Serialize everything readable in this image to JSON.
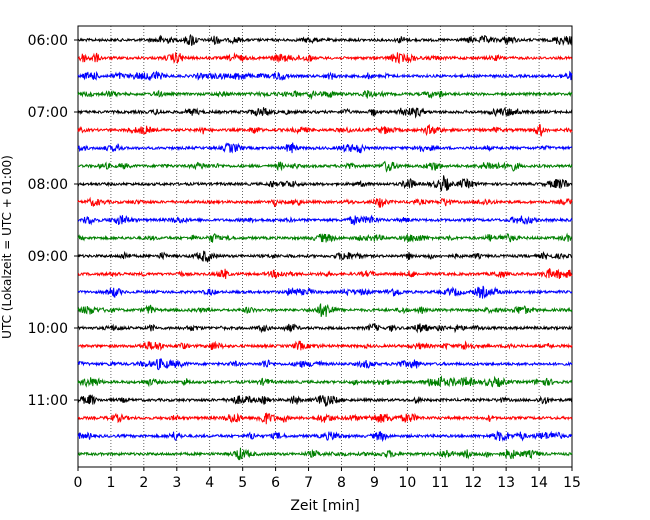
{
  "chart_data": {
    "type": "line",
    "description_kind": "helicorder",
    "xlabel": "Zeit  [min]",
    "ylabel": "UTC (Lokalzeit = UTC + 01:00)",
    "xlim": [
      0,
      15
    ],
    "x_ticks": [
      "0",
      "1",
      "2",
      "3",
      "4",
      "5",
      "6",
      "7",
      "8",
      "9",
      "10",
      "11",
      "12",
      "13",
      "14",
      "15"
    ],
    "y_ticks": [
      "06:00",
      "07:00",
      "08:00",
      "09:00",
      "10:00",
      "11:00"
    ],
    "grid": "vertical-dotted",
    "trace_start_times": [
      "06:00",
      "06:15",
      "06:30",
      "06:45",
      "07:00",
      "07:15",
      "07:30",
      "07:45",
      "08:00",
      "08:15",
      "08:30",
      "08:45",
      "09:00",
      "09:15",
      "09:30",
      "09:45",
      "10:00",
      "10:15",
      "10:30",
      "10:45",
      "11:00",
      "11:15",
      "11:30",
      "11:45"
    ],
    "trace_minutes": 15,
    "color_cycle": [
      "#000000",
      "#ff0000",
      "#0000ff",
      "#008000"
    ]
  }
}
